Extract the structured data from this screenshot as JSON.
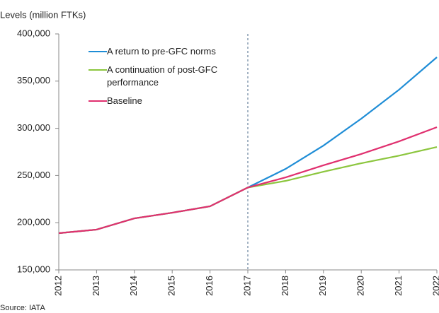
{
  "chart_data": {
    "type": "line",
    "y_label": "Levels (million FTKs)",
    "source": "Source: IATA",
    "categories": [
      "2012",
      "2013",
      "2014",
      "2015",
      "2016",
      "2017",
      "2018",
      "2019",
      "2020",
      "2021",
      "2022"
    ],
    "series": [
      {
        "name": "A return to pre-GFC norms",
        "color": "#1f8dd6",
        "values": [
          188900,
          192700,
          204600,
          210600,
          217400,
          237300,
          257000,
          281700,
          310200,
          340900,
          375300
        ]
      },
      {
        "name": "A continuation of post-GFC performance",
        "color": "#8cc63e",
        "values": [
          188900,
          192700,
          204600,
          210600,
          217400,
          237300,
          244300,
          254000,
          263000,
          271000,
          280200
        ]
      },
      {
        "name": "Baseline",
        "color": "#e0306f",
        "values": [
          188900,
          192700,
          204600,
          210600,
          217400,
          237300,
          248000,
          260800,
          272800,
          286200,
          301200
        ]
      }
    ],
    "ylim": [
      150000,
      400000
    ],
    "yticks": [
      {
        "value": 150000,
        "label": "150,000"
      },
      {
        "value": 200000,
        "label": "200,000"
      },
      {
        "value": 250000,
        "label": "250,000"
      },
      {
        "value": 300000,
        "label": "300,000"
      },
      {
        "value": 350000,
        "label": "350,000"
      },
      {
        "value": 400000,
        "label": "400,000"
      }
    ],
    "vline": "2017",
    "grid": false
  }
}
